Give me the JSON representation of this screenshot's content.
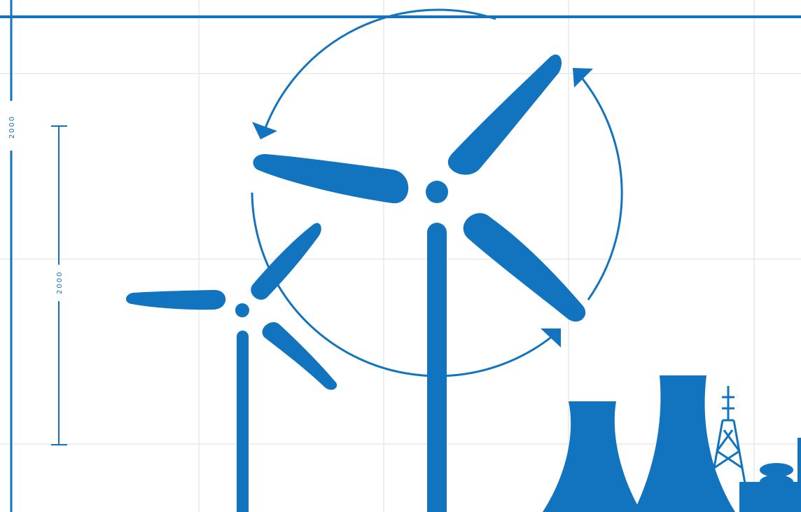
{
  "colors": {
    "ink": "#1274bf",
    "grid": "#e8e8e8",
    "background": "#ffffff"
  },
  "dimensions": {
    "left_edge_label": "2000",
    "inner_label": "2000"
  },
  "icons": [
    "wind-turbine-large",
    "wind-turbine-small",
    "rotation-arrow",
    "cooling-tower",
    "transmission-tower",
    "industrial-tank"
  ]
}
